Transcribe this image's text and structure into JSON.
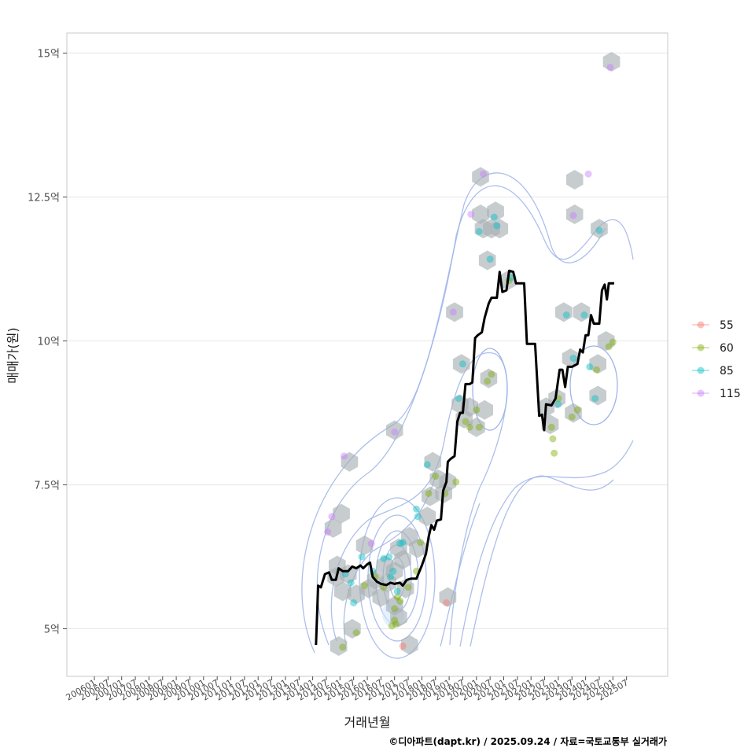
{
  "chart_data": {
    "type": "line",
    "xlabel": "거래년월",
    "ylabel": "매매가(원)",
    "caption": "©디아파트(dapt.kr) / 2025.09.24 / 자료=국토교통부 실거래가",
    "grid": true,
    "ylim": [
      4.25,
      15.25
    ],
    "y_ticks": [
      {
        "value": 5,
        "label": "5억"
      },
      {
        "value": 7.5,
        "label": "7.5억"
      },
      {
        "value": 10,
        "label": "10억"
      },
      {
        "value": 12.5,
        "label": "12.5억"
      },
      {
        "value": 15,
        "label": "15억"
      }
    ],
    "x_tick_labels": [
      "200601",
      "200607",
      "200701",
      "200707",
      "200801",
      "200807",
      "200901",
      "200907",
      "201001",
      "201007",
      "201101",
      "201107",
      "201201",
      "201207",
      "201301",
      "201307",
      "201401",
      "201407",
      "201501",
      "201507",
      "201601",
      "201607",
      "201701",
      "201707",
      "201801",
      "201807",
      "201901",
      "201907",
      "202001",
      "202007",
      "202101",
      "202107",
      "202201",
      "202207",
      "202301",
      "202307",
      "202401",
      "202407",
      "202501",
      "202507"
    ],
    "legend": {
      "position": "right",
      "items": [
        {
          "label": "55",
          "color": "#F8766D"
        },
        {
          "label": "60",
          "color": "#7CAE00"
        },
        {
          "label": "85",
          "color": "#00BFC4"
        },
        {
          "label": "115",
          "color": "#C77CFF"
        }
      ]
    },
    "line_color": "#000000",
    "hex_color": "#A9B0B6",
    "contour_color": "#9FB4E8",
    "median_line": [
      [
        2014.12,
        4.72
      ],
      [
        2014.2,
        5.75
      ],
      [
        2014.3,
        5.72
      ],
      [
        2014.45,
        5.95
      ],
      [
        2014.6,
        5.98
      ],
      [
        2014.7,
        5.85
      ],
      [
        2014.85,
        5.85
      ],
      [
        2014.95,
        6.05
      ],
      [
        2015.1,
        6.0
      ],
      [
        2015.3,
        6.0
      ],
      [
        2015.45,
        6.08
      ],
      [
        2015.6,
        6.05
      ],
      [
        2015.75,
        6.1
      ],
      [
        2015.85,
        6.05
      ],
      [
        2016.0,
        6.12
      ],
      [
        2016.1,
        6.15
      ],
      [
        2016.2,
        5.9
      ],
      [
        2016.35,
        5.82
      ],
      [
        2016.5,
        5.78
      ],
      [
        2016.7,
        5.76
      ],
      [
        2016.85,
        5.8
      ],
      [
        2017.0,
        5.78
      ],
      [
        2017.2,
        5.8
      ],
      [
        2017.3,
        5.75
      ],
      [
        2017.45,
        5.85
      ],
      [
        2017.6,
        5.87
      ],
      [
        2017.8,
        5.87
      ],
      [
        2018.0,
        6.1
      ],
      [
        2018.15,
        6.3
      ],
      [
        2018.25,
        6.6
      ],
      [
        2018.35,
        6.8
      ],
      [
        2018.45,
        6.72
      ],
      [
        2018.55,
        6.88
      ],
      [
        2018.7,
        6.9
      ],
      [
        2018.78,
        7.4
      ],
      [
        2018.9,
        7.55
      ],
      [
        2018.95,
        7.9
      ],
      [
        2019.05,
        7.95
      ],
      [
        2019.2,
        8.0
      ],
      [
        2019.3,
        8.6
      ],
      [
        2019.4,
        8.75
      ],
      [
        2019.5,
        8.75
      ],
      [
        2019.6,
        9.25
      ],
      [
        2019.75,
        9.25
      ],
      [
        2019.85,
        9.28
      ],
      [
        2019.95,
        10.05
      ],
      [
        2020.05,
        10.1
      ],
      [
        2020.2,
        10.15
      ],
      [
        2020.3,
        10.4
      ],
      [
        2020.45,
        10.65
      ],
      [
        2020.55,
        10.75
      ],
      [
        2020.75,
        10.75
      ],
      [
        2020.85,
        11.2
      ],
      [
        2020.95,
        10.85
      ],
      [
        2021.1,
        10.88
      ],
      [
        2021.2,
        11.22
      ],
      [
        2021.35,
        11.2
      ],
      [
        2021.45,
        11.0
      ],
      [
        2021.55,
        11.0
      ],
      [
        2021.75,
        11.0
      ],
      [
        2021.85,
        9.95
      ],
      [
        2022.0,
        9.95
      ],
      [
        2022.15,
        9.95
      ],
      [
        2022.3,
        8.7
      ],
      [
        2022.4,
        8.72
      ],
      [
        2022.48,
        8.45
      ],
      [
        2022.55,
        8.9
      ],
      [
        2022.75,
        8.88
      ],
      [
        2022.9,
        9.0
      ],
      [
        2023.05,
        9.5
      ],
      [
        2023.15,
        9.5
      ],
      [
        2023.25,
        9.2
      ],
      [
        2023.35,
        9.55
      ],
      [
        2023.5,
        9.55
      ],
      [
        2023.7,
        9.6
      ],
      [
        2023.8,
        9.85
      ],
      [
        2023.9,
        9.8
      ],
      [
        2024.0,
        10.1
      ],
      [
        2024.1,
        10.1
      ],
      [
        2024.2,
        10.45
      ],
      [
        2024.3,
        10.3
      ],
      [
        2024.5,
        10.3
      ],
      [
        2024.6,
        10.88
      ],
      [
        2024.7,
        10.98
      ],
      [
        2024.78,
        10.72
      ],
      [
        2024.85,
        11.0
      ],
      [
        2025.05,
        11.0
      ]
    ],
    "scatter": [
      {
        "group": "55",
        "points": [
          [
            2017.3,
            4.7
          ],
          [
            2018.9,
            5.45
          ]
        ]
      },
      {
        "group": "60",
        "points": [
          [
            2015.1,
            4.68
          ],
          [
            2015.6,
            4.93
          ],
          [
            2015.9,
            5.75
          ],
          [
            2016.3,
            5.9
          ],
          [
            2016.6,
            5.72
          ],
          [
            2017.0,
            5.35
          ],
          [
            2017.1,
            5.55
          ],
          [
            2017.2,
            5.48
          ],
          [
            2017.5,
            5.72
          ],
          [
            2017.8,
            6.0
          ],
          [
            2017.95,
            6.5
          ],
          [
            2018.25,
            7.35
          ],
          [
            2018.5,
            7.65
          ],
          [
            2018.85,
            7.35
          ],
          [
            2019.25,
            7.55
          ],
          [
            2019.6,
            8.6
          ],
          [
            2019.75,
            8.5
          ],
          [
            2020.0,
            8.8
          ],
          [
            2020.1,
            8.5
          ],
          [
            2020.4,
            9.3
          ],
          [
            2020.55,
            9.42
          ],
          [
            2021.2,
            11.05
          ],
          [
            2022.75,
            8.5
          ],
          [
            2022.8,
            8.3
          ],
          [
            2022.85,
            8.05
          ],
          [
            2023.0,
            9.0
          ],
          [
            2023.5,
            8.68
          ],
          [
            2023.7,
            8.8
          ],
          [
            2024.4,
            9.5
          ],
          [
            2024.85,
            9.9
          ],
          [
            2025.0,
            9.98
          ],
          [
            2016.9,
            5.05
          ],
          [
            2017.0,
            5.15
          ],
          [
            2017.05,
            5.08
          ]
        ]
      },
      {
        "group": "85",
        "points": [
          [
            2015.2,
            5.95
          ],
          [
            2015.4,
            5.8
          ],
          [
            2015.5,
            5.45
          ],
          [
            2015.8,
            6.25
          ],
          [
            2016.2,
            6.0
          ],
          [
            2016.6,
            6.22
          ],
          [
            2016.8,
            6.25
          ],
          [
            2016.85,
            5.9
          ],
          [
            2016.95,
            6.0
          ],
          [
            2017.1,
            5.65
          ],
          [
            2017.2,
            6.48
          ],
          [
            2017.3,
            6.5
          ],
          [
            2017.8,
            7.08
          ],
          [
            2017.85,
            6.95
          ],
          [
            2018.2,
            7.85
          ],
          [
            2019.35,
            9.0
          ],
          [
            2019.5,
            9.6
          ],
          [
            2020.1,
            11.9
          ],
          [
            2020.5,
            11.42
          ],
          [
            2020.65,
            12.15
          ],
          [
            2020.75,
            12.0
          ],
          [
            2021.25,
            11.1
          ],
          [
            2023.0,
            8.9
          ],
          [
            2023.3,
            10.45
          ],
          [
            2023.55,
            9.7
          ],
          [
            2023.95,
            10.45
          ],
          [
            2024.15,
            9.55
          ],
          [
            2024.35,
            9.0
          ],
          [
            2024.5,
            11.92
          ]
        ]
      },
      {
        "group": "115",
        "points": [
          [
            2014.55,
            6.68
          ],
          [
            2014.7,
            6.95
          ],
          [
            2015.15,
            8.0
          ],
          [
            2016.15,
            6.48
          ],
          [
            2017.0,
            8.42
          ],
          [
            2019.15,
            10.5
          ],
          [
            2019.8,
            12.2
          ],
          [
            2020.25,
            12.9
          ],
          [
            2023.55,
            12.18
          ],
          [
            2024.1,
            12.9
          ],
          [
            2024.9,
            14.75
          ]
        ]
      }
    ],
    "hexbins": [
      [
        2014.95,
        4.7
      ],
      [
        2014.75,
        6.75
      ],
      [
        2014.9,
        6.1
      ],
      [
        2015.05,
        7.0
      ],
      [
        2015.35,
        7.9
      ],
      [
        2015.45,
        5.0
      ],
      [
        2014.85,
        5.9
      ],
      [
        2015.1,
        5.65
      ],
      [
        2015.3,
        5.95
      ],
      [
        2015.6,
        5.6
      ],
      [
        2015.9,
        6.45
      ],
      [
        2016.05,
        5.7
      ],
      [
        2016.3,
        5.85
      ],
      [
        2016.5,
        5.55
      ],
      [
        2016.75,
        5.8
      ],
      [
        2016.65,
        6.1
      ],
      [
        2017.0,
        6.0
      ],
      [
        2017.15,
        6.4
      ],
      [
        2017.3,
        6.2
      ],
      [
        2017.4,
        5.7
      ],
      [
        2017.0,
        5.4
      ],
      [
        2017.15,
        5.2
      ],
      [
        2017.0,
        8.45
      ],
      [
        2017.55,
        4.72
      ],
      [
        2017.55,
        6.6
      ],
      [
        2017.85,
        6.4
      ],
      [
        2018.2,
        6.95
      ],
      [
        2018.3,
        7.3
      ],
      [
        2018.4,
        7.9
      ],
      [
        2018.6,
        7.6
      ],
      [
        2018.8,
        7.35
      ],
      [
        2018.95,
        7.55
      ],
      [
        2018.95,
        5.55
      ],
      [
        2019.2,
        10.5
      ],
      [
        2019.4,
        8.9
      ],
      [
        2019.45,
        9.6
      ],
      [
        2019.55,
        8.65
      ],
      [
        2019.75,
        8.85
      ],
      [
        2020.0,
        8.5
      ],
      [
        2020.3,
        8.8
      ],
      [
        2020.45,
        9.35
      ],
      [
        2020.15,
        12.85
      ],
      [
        2020.15,
        12.2
      ],
      [
        2020.25,
        11.95
      ],
      [
        2020.4,
        11.4
      ],
      [
        2020.55,
        11.95
      ],
      [
        2020.7,
        12.25
      ],
      [
        2020.85,
        11.95
      ],
      [
        2021.15,
        11.05
      ],
      [
        2022.55,
        8.85
      ],
      [
        2022.7,
        8.55
      ],
      [
        2022.95,
        9.0
      ],
      [
        2023.2,
        10.5
      ],
      [
        2023.45,
        9.7
      ],
      [
        2023.55,
        8.75
      ],
      [
        2023.6,
        12.8
      ],
      [
        2023.6,
        12.2
      ],
      [
        2023.85,
        10.5
      ],
      [
        2024.5,
        11.95
      ],
      [
        2024.45,
        9.6
      ],
      [
        2024.45,
        9.05
      ],
      [
        2024.75,
        10.0
      ],
      [
        2024.95,
        14.85
      ]
    ]
  }
}
